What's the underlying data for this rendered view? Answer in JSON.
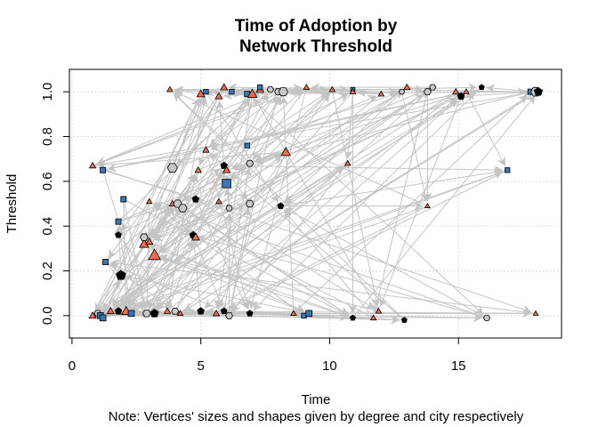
{
  "chart_data": {
    "type": "scatter",
    "title_line1": "Time of Adoption by",
    "title_line2": "Network Threshold",
    "xlabel": "Time",
    "ylabel": "Threshold",
    "note": "Note: Vertices' sizes and shapes given by degree and city respectively",
    "xlim": [
      -0.1,
      19
    ],
    "ylim": [
      -0.1,
      1.1
    ],
    "x_ticks": [
      0,
      5,
      10,
      15
    ],
    "x_tick_labels": [
      "0",
      "5",
      "10",
      "15"
    ],
    "y_ticks": [
      0.0,
      0.2,
      0.4,
      0.6,
      0.8,
      1.0
    ],
    "y_tick_labels": [
      "0.0",
      "0.2",
      "0.4",
      "0.6",
      "0.8",
      "1.0"
    ],
    "grid": true,
    "colors": {
      "triangle": "#f26b50",
      "square": "#3b76b4",
      "pentagon": "#000000",
      "hexagon": "#c8c8c8",
      "edge": "#c4c4c4",
      "grid": "#d9d9d9"
    },
    "points": [
      {
        "x": 0.8,
        "y": 0.0,
        "shape": "triangle",
        "size": 1.0
      },
      {
        "x": 1.0,
        "y": 0.01,
        "shape": "hexagon",
        "size": 1.0
      },
      {
        "x": 1.1,
        "y": 0.0,
        "shape": "square",
        "size": 1.0
      },
      {
        "x": 1.2,
        "y": -0.01,
        "shape": "square",
        "size": 1.0
      },
      {
        "x": 1.5,
        "y": 0.02,
        "shape": "triangle",
        "size": 1.0
      },
      {
        "x": 1.8,
        "y": 0.02,
        "shape": "pentagon",
        "size": 1.0
      },
      {
        "x": 2.1,
        "y": 0.02,
        "shape": "triangle",
        "size": 1.3
      },
      {
        "x": 2.3,
        "y": 0.01,
        "shape": "square",
        "size": 1.0
      },
      {
        "x": 2.9,
        "y": 0.01,
        "shape": "hexagon",
        "size": 1.1
      },
      {
        "x": 3.2,
        "y": 0.01,
        "shape": "pentagon",
        "size": 1.2
      },
      {
        "x": 3.7,
        "y": 0.02,
        "shape": "triangle",
        "size": 0.9
      },
      {
        "x": 4.0,
        "y": 0.02,
        "shape": "hexagon",
        "size": 1.0
      },
      {
        "x": 4.2,
        "y": 0.01,
        "shape": "triangle",
        "size": 0.8
      },
      {
        "x": 5.0,
        "y": 0.02,
        "shape": "pentagon",
        "size": 1.0
      },
      {
        "x": 5.6,
        "y": 0.01,
        "shape": "triangle",
        "size": 0.9
      },
      {
        "x": 5.9,
        "y": 0.02,
        "shape": "pentagon",
        "size": 0.9
      },
      {
        "x": 6.1,
        "y": 0.0,
        "shape": "hexagon",
        "size": 1.0
      },
      {
        "x": 6.9,
        "y": 0.01,
        "shape": "pentagon",
        "size": 0.9
      },
      {
        "x": 8.6,
        "y": 0.01,
        "shape": "triangle",
        "size": 0.8
      },
      {
        "x": 9.0,
        "y": 0.0,
        "shape": "square",
        "size": 0.8
      },
      {
        "x": 9.2,
        "y": 0.01,
        "shape": "square",
        "size": 1.0
      },
      {
        "x": 10.9,
        "y": -0.01,
        "shape": "pentagon",
        "size": 0.8
      },
      {
        "x": 11.7,
        "y": -0.01,
        "shape": "triangle",
        "size": 0.8
      },
      {
        "x": 11.9,
        "y": 0.02,
        "shape": "triangle",
        "size": 0.8
      },
      {
        "x": 12.9,
        "y": -0.02,
        "shape": "pentagon",
        "size": 0.8
      },
      {
        "x": 16.1,
        "y": -0.01,
        "shape": "hexagon",
        "size": 0.9
      },
      {
        "x": 18.0,
        "y": 0.01,
        "shape": "triangle",
        "size": 0.7
      },
      {
        "x": 0.8,
        "y": 0.67,
        "shape": "triangle",
        "size": 0.9
      },
      {
        "x": 1.2,
        "y": 0.65,
        "shape": "square",
        "size": 0.9
      },
      {
        "x": 1.3,
        "y": 0.24,
        "shape": "square",
        "size": 0.9
      },
      {
        "x": 1.8,
        "y": 0.42,
        "shape": "square",
        "size": 0.9
      },
      {
        "x": 1.8,
        "y": 0.36,
        "shape": "pentagon",
        "size": 0.9
      },
      {
        "x": 1.9,
        "y": 0.18,
        "shape": "pentagon",
        "size": 1.4
      },
      {
        "x": 2.0,
        "y": 0.52,
        "shape": "square",
        "size": 0.9
      },
      {
        "x": 2.8,
        "y": 0.32,
        "shape": "triangle",
        "size": 1.3
      },
      {
        "x": 2.8,
        "y": 0.35,
        "shape": "hexagon",
        "size": 1.1
      },
      {
        "x": 3.0,
        "y": 0.33,
        "shape": "triangle",
        "size": 1.0
      },
      {
        "x": 3.0,
        "y": 0.51,
        "shape": "triangle",
        "size": 0.8
      },
      {
        "x": 3.2,
        "y": 0.27,
        "shape": "triangle",
        "size": 1.7
      },
      {
        "x": 3.9,
        "y": 0.66,
        "shape": "hexagon",
        "size": 1.4
      },
      {
        "x": 3.9,
        "y": 0.5,
        "shape": "triangle",
        "size": 0.9
      },
      {
        "x": 4.1,
        "y": 0.5,
        "shape": "hexagon",
        "size": 1.2
      },
      {
        "x": 4.3,
        "y": 0.48,
        "shape": "hexagon",
        "size": 1.2
      },
      {
        "x": 4.7,
        "y": 0.36,
        "shape": "pentagon",
        "size": 1.0
      },
      {
        "x": 4.8,
        "y": 0.52,
        "shape": "pentagon",
        "size": 1.0
      },
      {
        "x": 4.8,
        "y": 0.35,
        "shape": "triangle",
        "size": 1.1
      },
      {
        "x": 4.9,
        "y": 0.65,
        "shape": "triangle",
        "size": 0.9
      },
      {
        "x": 5.2,
        "y": 0.74,
        "shape": "triangle",
        "size": 0.9
      },
      {
        "x": 5.7,
        "y": 0.51,
        "shape": "triangle",
        "size": 0.8
      },
      {
        "x": 5.9,
        "y": 0.67,
        "shape": "pentagon",
        "size": 1.0
      },
      {
        "x": 6.0,
        "y": 0.65,
        "shape": "triangle",
        "size": 1.0
      },
      {
        "x": 6.0,
        "y": 0.59,
        "shape": "square",
        "size": 1.4
      },
      {
        "x": 6.1,
        "y": 0.48,
        "shape": "hexagon",
        "size": 0.9
      },
      {
        "x": 6.8,
        "y": 0.76,
        "shape": "square",
        "size": 0.8
      },
      {
        "x": 6.9,
        "y": 0.5,
        "shape": "hexagon",
        "size": 1.1
      },
      {
        "x": 6.9,
        "y": 0.68,
        "shape": "hexagon",
        "size": 1.0
      },
      {
        "x": 8.1,
        "y": 0.49,
        "shape": "pentagon",
        "size": 0.9
      },
      {
        "x": 8.3,
        "y": 0.73,
        "shape": "triangle",
        "size": 1.3
      },
      {
        "x": 10.7,
        "y": 0.68,
        "shape": "triangle",
        "size": 0.8
      },
      {
        "x": 13.8,
        "y": 0.49,
        "shape": "triangle",
        "size": 0.7
      },
      {
        "x": 16.9,
        "y": 0.65,
        "shape": "square",
        "size": 0.8
      },
      {
        "x": 3.8,
        "y": 1.01,
        "shape": "triangle",
        "size": 0.8
      },
      {
        "x": 5.0,
        "y": 0.99,
        "shape": "triangle",
        "size": 1.1
      },
      {
        "x": 5.2,
        "y": 1.0,
        "shape": "square",
        "size": 0.8
      },
      {
        "x": 5.7,
        "y": 0.98,
        "shape": "triangle",
        "size": 1.0
      },
      {
        "x": 5.9,
        "y": 1.02,
        "shape": "triangle",
        "size": 1.0
      },
      {
        "x": 6.2,
        "y": 1.0,
        "shape": "square",
        "size": 0.8
      },
      {
        "x": 6.8,
        "y": 0.99,
        "shape": "square",
        "size": 0.9
      },
      {
        "x": 7.0,
        "y": 0.99,
        "shape": "triangle",
        "size": 1.3
      },
      {
        "x": 7.3,
        "y": 1.01,
        "shape": "triangle",
        "size": 1.1
      },
      {
        "x": 7.3,
        "y": 1.02,
        "shape": "square",
        "size": 0.8
      },
      {
        "x": 7.7,
        "y": 1.01,
        "shape": "hexagon",
        "size": 0.9
      },
      {
        "x": 8.0,
        "y": 1.0,
        "shape": "hexagon",
        "size": 1.0
      },
      {
        "x": 8.2,
        "y": 1.0,
        "shape": "hexagon",
        "size": 1.3
      },
      {
        "x": 9.1,
        "y": 1.02,
        "shape": "triangle",
        "size": 0.8
      },
      {
        "x": 10.1,
        "y": 1.01,
        "shape": "triangle",
        "size": 0.8
      },
      {
        "x": 10.9,
        "y": 1.01,
        "shape": "square",
        "size": 0.7
      },
      {
        "x": 10.9,
        "y": 1.0,
        "shape": "triangle",
        "size": 0.8
      },
      {
        "x": 12.0,
        "y": 0.99,
        "shape": "triangle",
        "size": 0.8
      },
      {
        "x": 12.8,
        "y": 1.0,
        "shape": "hexagon",
        "size": 0.8
      },
      {
        "x": 13.0,
        "y": 1.02,
        "shape": "triangle",
        "size": 0.9
      },
      {
        "x": 13.8,
        "y": 1.0,
        "shape": "hexagon",
        "size": 1.0
      },
      {
        "x": 14.0,
        "y": 1.02,
        "shape": "hexagon",
        "size": 0.9
      },
      {
        "x": 14.9,
        "y": 1.0,
        "shape": "triangle",
        "size": 0.9
      },
      {
        "x": 15.1,
        "y": 0.98,
        "shape": "pentagon",
        "size": 1.0
      },
      {
        "x": 15.3,
        "y": 1.0,
        "shape": "triangle",
        "size": 0.8
      },
      {
        "x": 15.9,
        "y": 1.02,
        "shape": "pentagon",
        "size": 0.8
      },
      {
        "x": 17.8,
        "y": 1.0,
        "shape": "square",
        "size": 0.9
      },
      {
        "x": 18.0,
        "y": 1.0,
        "shape": "hexagon",
        "size": 1.4
      },
      {
        "x": 18.1,
        "y": 1.0,
        "shape": "pentagon",
        "size": 1.2
      }
    ]
  }
}
